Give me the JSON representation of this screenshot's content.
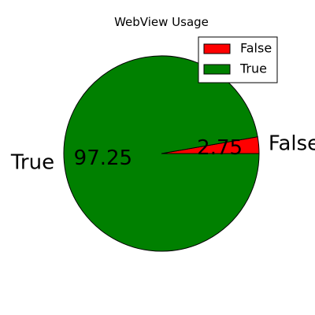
{
  "chart_data": {
    "type": "pie",
    "title": "WebView Usage",
    "slices": [
      {
        "label": "False",
        "value": 2.75,
        "value_label": "2.75",
        "color": "#ff0000"
      },
      {
        "label": "True",
        "value": 97.25,
        "value_label": "97.25",
        "color": "#008000"
      }
    ],
    "legend": {
      "placement": "top-right",
      "entries": [
        "False",
        "True"
      ]
    }
  }
}
